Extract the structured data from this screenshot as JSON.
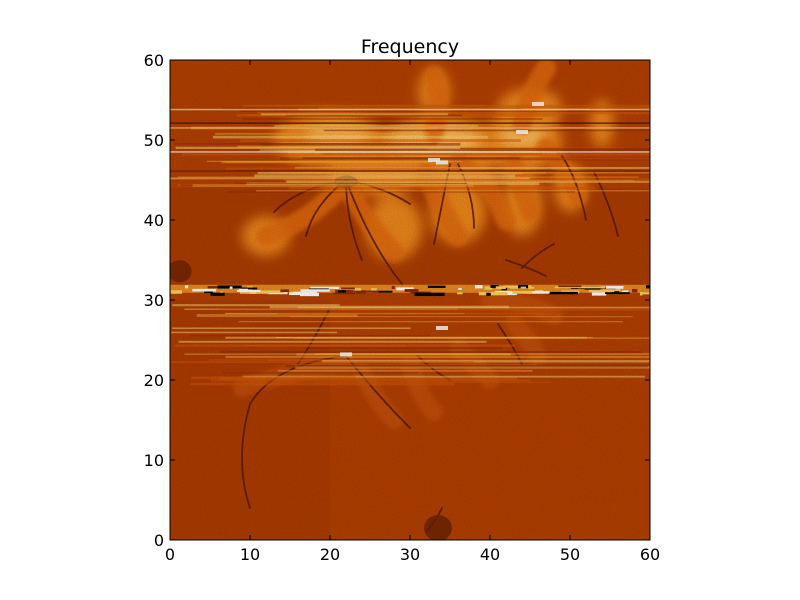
{
  "chart_data": {
    "type": "heatmap",
    "title": "Frequency",
    "xlabel": "",
    "ylabel": "",
    "xlim": [
      0,
      60
    ],
    "ylim": [
      0,
      60
    ],
    "x_ticks": [
      "0",
      "10",
      "20",
      "30",
      "40",
      "50",
      "60"
    ],
    "y_ticks": [
      "0",
      "10",
      "20",
      "30",
      "40",
      "50",
      "60"
    ],
    "colormap": "afmhot",
    "colors": {
      "background": "#b34000",
      "dark_filament": "#5a1800",
      "bright_region": "#f08a1c",
      "hot_band": "#ffffff"
    },
    "features": {
      "hot_band_y": [
        30.9,
        31.9
      ],
      "upper_streak_band_y": [
        43.5,
        54.5
      ],
      "lower_streak_band_y": [
        19.5,
        29.5
      ]
    },
    "grid": false,
    "legend": false
  }
}
